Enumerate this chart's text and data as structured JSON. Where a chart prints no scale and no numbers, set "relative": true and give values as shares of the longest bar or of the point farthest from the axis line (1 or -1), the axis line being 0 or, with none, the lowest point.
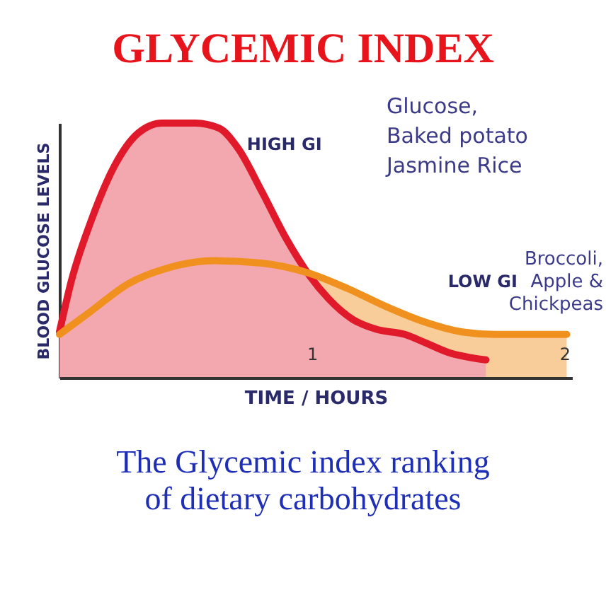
{
  "chart_data": {
    "type": "area",
    "title": "GLYCEMIC INDEX",
    "subtitle": "The Glycemic index ranking\nof dietary carbohydrates",
    "xlabel": "TIME / HOURS",
    "ylabel": "BLOOD GLUCOSE LEVELS",
    "relative": true,
    "xlim": [
      0,
      2.03
    ],
    "xticks": [
      1,
      2
    ],
    "tick_labels": "x",
    "grid": false,
    "annotations": [
      "Glucose,\nBaked potato\nJasmine Rice",
      "Broccoli,\nApple &\nChickpeas"
    ],
    "series": [
      {
        "name": "HIGH GI",
        "color": "#e0192b",
        "x": [
          0,
          0.047,
          0.123,
          0.217,
          0.311,
          0.406,
          0.538,
          0.632,
          0.708,
          0.802,
          0.896,
          0.991,
          1.066,
          1.16,
          1.255,
          1.368,
          1.443,
          1.538,
          1.689
        ],
        "values": [
          0.18,
          0.38,
          0.61,
          0.83,
          0.96,
          1.0,
          1.0,
          0.98,
          0.9,
          0.73,
          0.55,
          0.4,
          0.31,
          0.23,
          0.19,
          0.17,
          0.14,
          0.1,
          0.07
        ]
      },
      {
        "name": "LOW GI",
        "color": "#f0901e",
        "x": [
          0,
          0.123,
          0.274,
          0.425,
          0.613,
          0.802,
          0.991,
          1.142,
          1.292,
          1.443,
          1.594,
          1.726,
          2.009
        ],
        "values": [
          0.17,
          0.26,
          0.37,
          0.43,
          0.46,
          0.45,
          0.41,
          0.35,
          0.28,
          0.22,
          0.18,
          0.17,
          0.17
        ]
      }
    ]
  }
}
